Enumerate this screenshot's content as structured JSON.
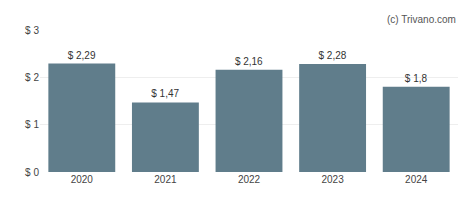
{
  "chart_data": {
    "type": "bar",
    "categories": [
      "2020",
      "2021",
      "2022",
      "2023",
      "2024"
    ],
    "values": [
      2.29,
      1.47,
      2.16,
      2.28,
      1.8
    ],
    "value_labels": [
      "$ 2,29",
      "$ 1,47",
      "$ 2,16",
      "$ 2,28",
      "$ 1,8"
    ],
    "color": "#607d8b",
    "ylim": [
      0,
      3
    ],
    "yticks": [
      {
        "value": 0,
        "label": "$ 0"
      },
      {
        "value": 1,
        "label": "$ 1"
      },
      {
        "value": 2,
        "label": "$ 2"
      },
      {
        "value": 3,
        "label": "$ 3"
      }
    ],
    "grid": true,
    "annotations": [
      "(c) Trivano.com"
    ]
  }
}
